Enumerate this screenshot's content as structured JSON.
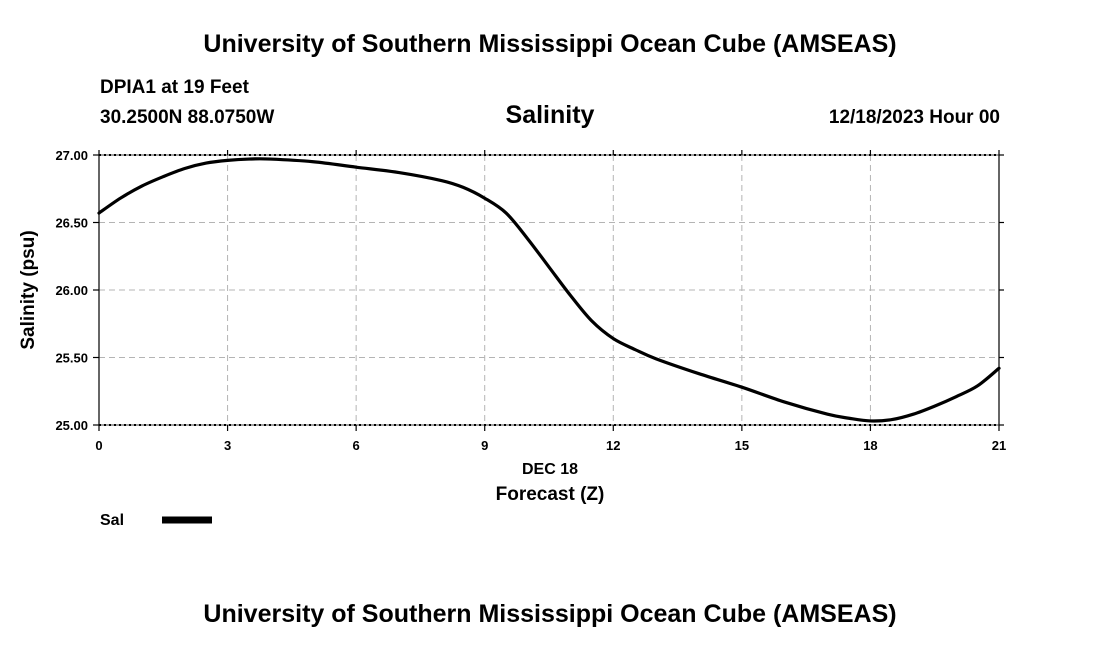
{
  "header": {
    "title": "University of Southern Mississippi Ocean Cube (AMSEAS)",
    "station": "DPIA1 at 19 Feet",
    "coordinates": "30.2500N  88.0750W",
    "datetime": "12/18/2023 Hour 00"
  },
  "footer": {
    "title": "University of Southern Mississippi Ocean Cube (AMSEAS)"
  },
  "colors": {
    "line": "#000000",
    "grid": "#b4b4b4",
    "frame": "#000000"
  },
  "chart_data": {
    "type": "line",
    "title": "Salinity",
    "xlabel": "Forecast (Z)",
    "xsublabel": "DEC 18",
    "ylabel": "Salinity (psu)",
    "xlim": [
      0,
      21
    ],
    "ylim": [
      25.0,
      27.0
    ],
    "xticks": [
      0,
      3,
      6,
      9,
      12,
      15,
      18,
      21
    ],
    "yticks": [
      "25.00",
      "25.50",
      "26.00",
      "26.50",
      "27.00"
    ],
    "grid": true,
    "legend_position": "bottom-left",
    "series": [
      {
        "name": "Sal",
        "x": [
          0,
          0.5,
          1,
          1.5,
          2,
          2.5,
          3,
          3.5,
          4,
          5,
          6,
          7,
          8,
          8.5,
          9,
          9.5,
          10,
          10.5,
          11,
          11.5,
          12,
          12.5,
          13,
          14,
          15,
          16,
          17,
          17.5,
          18,
          18.5,
          19,
          19.5,
          20,
          20.5,
          21
        ],
        "values": [
          26.57,
          26.68,
          26.77,
          26.84,
          26.9,
          26.94,
          26.96,
          26.97,
          26.97,
          26.95,
          26.91,
          26.87,
          26.81,
          26.76,
          26.68,
          26.57,
          26.38,
          26.17,
          25.96,
          25.77,
          25.64,
          25.56,
          25.49,
          25.38,
          25.28,
          25.17,
          25.08,
          25.05,
          25.03,
          25.04,
          25.08,
          25.14,
          25.21,
          25.29,
          25.42
        ]
      }
    ]
  }
}
